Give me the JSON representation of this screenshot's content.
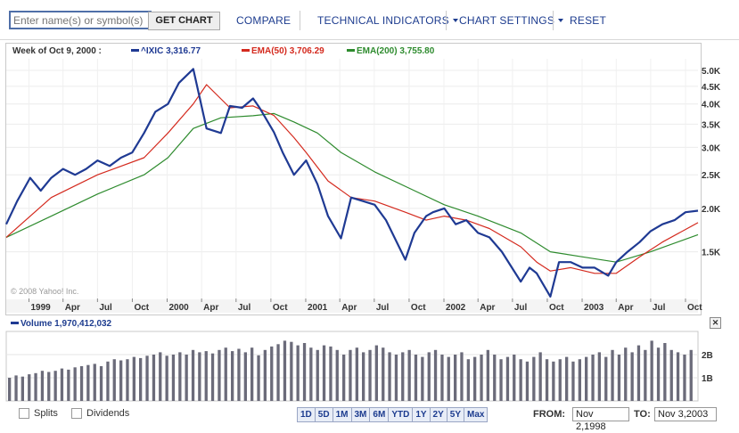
{
  "toolbar": {
    "symbol_placeholder": "Enter name(s) or symbol(s)",
    "get_chart": "GET CHART",
    "compare": "COMPARE",
    "technical_indicators": "TECHNICAL INDICATORS",
    "chart_settings": "CHART SETTINGS",
    "reset": "RESET"
  },
  "legend": {
    "period": "Week of Oct 9, 2000 :",
    "ixic_label": "^IXIC",
    "ixic_value": "3,316.77",
    "ema50_label": "EMA(50)",
    "ema50_value": "3,706.29",
    "ema200_label": "EMA(200)",
    "ema200_value": "3,755.80"
  },
  "copyright": "© 2008 Yahoo! Inc.",
  "colors": {
    "price": "#1f3a93",
    "ema50": "#d42a1e",
    "ema200": "#2e8b2e",
    "volume": "#6b6b7a"
  },
  "volume_panel": {
    "label": "Volume",
    "value": "1,970,412,032",
    "ticks": [
      "2B",
      "1B"
    ]
  },
  "chart_data": {
    "type": "line",
    "y_scale": "log",
    "x_ticks": [
      "1999",
      "Apr",
      "Jul",
      "Oct",
      "2000",
      "Apr",
      "Jul",
      "Oct",
      "2001",
      "Apr",
      "Jul",
      "Oct",
      "2002",
      "Apr",
      "Jul",
      "Oct",
      "2003",
      "Apr",
      "Jul",
      "Oct"
    ],
    "y_ticks": [
      "5.0K",
      "4.5K",
      "4.0K",
      "3.5K",
      "3.0K",
      "2.5K",
      "2.0K",
      "1.5K"
    ],
    "ylim": [
      1100,
      5400
    ],
    "x_range": [
      "1998-11-02",
      "2003-11-03"
    ],
    "series": [
      {
        "name": "^IXIC",
        "x": [
          "1998-11-02",
          "1998-12-01",
          "1999-01-04",
          "1999-02-01",
          "1999-03-01",
          "1999-04-01",
          "1999-05-03",
          "1999-06-01",
          "1999-07-01",
          "1999-08-02",
          "1999-09-01",
          "1999-10-01",
          "1999-11-01",
          "1999-12-01",
          "2000-01-03",
          "2000-02-01",
          "2000-03-10",
          "2000-04-14",
          "2000-05-22",
          "2000-06-15",
          "2000-07-17",
          "2000-08-15",
          "2000-09-01",
          "2000-10-09",
          "2000-11-01",
          "2000-12-01",
          "2001-01-02",
          "2001-02-01",
          "2001-03-01",
          "2001-04-04",
          "2001-05-01",
          "2001-06-01",
          "2001-07-02",
          "2001-08-01",
          "2001-09-21",
          "2001-10-15",
          "2001-11-15",
          "2001-12-03",
          "2002-01-02",
          "2002-02-01",
          "2002-03-01",
          "2002-04-01",
          "2002-05-01",
          "2002-06-03",
          "2002-07-23",
          "2002-08-15",
          "2002-09-03",
          "2002-10-09",
          "2002-11-01",
          "2002-12-02",
          "2003-01-02",
          "2003-02-03",
          "2003-03-11",
          "2003-04-01",
          "2003-05-01",
          "2003-06-02",
          "2003-07-01",
          "2003-08-01",
          "2003-09-02",
          "2003-10-01",
          "2003-11-03"
        ],
        "values": [
          1800,
          2100,
          2450,
          2250,
          2450,
          2600,
          2500,
          2600,
          2750,
          2650,
          2800,
          2900,
          3300,
          3800,
          4000,
          4600,
          5048,
          3400,
          3300,
          3950,
          3900,
          4150,
          3900,
          3316.77,
          2900,
          2500,
          2750,
          2350,
          1900,
          1640,
          2150,
          2100,
          2050,
          1850,
          1423,
          1700,
          1900,
          1950,
          2000,
          1800,
          1850,
          1700,
          1650,
          1500,
          1230,
          1350,
          1300,
          1114,
          1400,
          1400,
          1350,
          1350,
          1280,
          1400,
          1500,
          1600,
          1720,
          1800,
          1850,
          1950,
          1970
        ]
      },
      {
        "name": "EMA(50)",
        "x": [
          "1998-11-02",
          "1999-03-01",
          "1999-07-01",
          "1999-11-01",
          "2000-01-03",
          "2000-03-10",
          "2000-04-14",
          "2000-06-15",
          "2000-08-15",
          "2000-10-09",
          "2000-12-01",
          "2001-01-02",
          "2001-03-01",
          "2001-05-01",
          "2001-07-02",
          "2001-09-21",
          "2001-11-15",
          "2002-01-02",
          "2002-03-01",
          "2002-05-01",
          "2002-07-23",
          "2002-09-03",
          "2002-10-09",
          "2002-12-02",
          "2003-02-03",
          "2003-04-01",
          "2003-06-02",
          "2003-08-01",
          "2003-11-03"
        ],
        "values": [
          1650,
          2150,
          2500,
          2800,
          3300,
          4000,
          4550,
          3900,
          3950,
          3706.29,
          3200,
          2900,
          2400,
          2150,
          2100,
          1950,
          1850,
          1900,
          1850,
          1750,
          1550,
          1400,
          1320,
          1350,
          1300,
          1300,
          1450,
          1600,
          1820
        ]
      },
      {
        "name": "EMA(200)",
        "x": [
          "1998-11-02",
          "1999-03-01",
          "1999-07-01",
          "1999-11-01",
          "2000-01-03",
          "2000-03-10",
          "2000-05-22",
          "2000-08-15",
          "2000-10-09",
          "2000-12-01",
          "2001-02-01",
          "2001-04-04",
          "2001-07-02",
          "2001-10-15",
          "2002-01-02",
          "2002-04-01",
          "2002-07-23",
          "2002-10-09",
          "2003-01-02",
          "2003-04-01",
          "2003-07-01",
          "2003-11-03"
        ],
        "values": [
          1650,
          1900,
          2200,
          2500,
          2800,
          3400,
          3650,
          3700,
          3755.8,
          3550,
          3300,
          2900,
          2550,
          2250,
          2050,
          1900,
          1700,
          1500,
          1450,
          1400,
          1500,
          1680
        ]
      }
    ],
    "volume_ylim": [
      0,
      3000000000
    ],
    "volume_values_billion": [
      1.0,
      1.1,
      1.05,
      1.15,
      1.2,
      1.3,
      1.25,
      1.3,
      1.4,
      1.35,
      1.45,
      1.5,
      1.55,
      1.6,
      1.5,
      1.7,
      1.8,
      1.75,
      1.8,
      1.9,
      1.85,
      1.95,
      2.0,
      2.1,
      1.95,
      2.0,
      2.1,
      2.0,
      2.2,
      2.1,
      2.15,
      2.05,
      2.2,
      2.3,
      2.15,
      2.25,
      2.1,
      2.3,
      1.97,
      2.2,
      2.35,
      2.45,
      2.6,
      2.55,
      2.4,
      2.5,
      2.3,
      2.2,
      2.4,
      2.35,
      2.2,
      2.0,
      2.2,
      2.3,
      2.1,
      2.2,
      2.4,
      2.3,
      2.1,
      2.0,
      2.1,
      2.2,
      2.0,
      1.9,
      2.1,
      2.2,
      2.0,
      1.9,
      2.0,
      2.1,
      1.8,
      1.9,
      2.0,
      2.2,
      2.0,
      1.8,
      1.9,
      2.0,
      1.8,
      1.7,
      1.9,
      2.1,
      1.8,
      1.7,
      1.8,
      1.9,
      1.7,
      1.8,
      1.9,
      2.0,
      2.1,
      1.9,
      2.2,
      2.0,
      2.3,
      2.1,
      2.4,
      2.2,
      2.6,
      2.3,
      2.5,
      2.2,
      2.1,
      2.0,
      2.2
    ]
  },
  "bottom": {
    "splits": "Splits",
    "dividends": "Dividends",
    "ranges": [
      "1D",
      "5D",
      "1M",
      "3M",
      "6M",
      "YTD",
      "1Y",
      "2Y",
      "5Y",
      "Max"
    ],
    "from_label": "FROM:",
    "from_value": "Nov 2,1998",
    "to_label": "TO:",
    "to_value": "Nov 3,2003"
  }
}
